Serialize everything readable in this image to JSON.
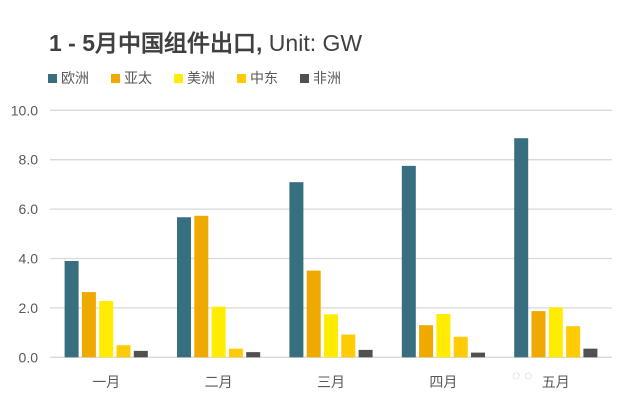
{
  "chart_data": {
    "type": "bar",
    "title_bold": "1 - 5月中国组件出口,",
    "title_rest": " Unit: GW",
    "categories": [
      "一月",
      "二月",
      "三月",
      "四月",
      "五月"
    ],
    "series": [
      {
        "name": "欧洲",
        "color": "#376f81",
        "values": [
          3.9,
          5.67,
          7.09,
          7.75,
          8.87
        ]
      },
      {
        "name": "亚太",
        "color": "#f0a900",
        "values": [
          2.64,
          5.73,
          3.51,
          1.3,
          1.87
        ]
      },
      {
        "name": "美洲",
        "color": "#ffec00",
        "values": [
          2.28,
          2.05,
          1.74,
          1.75,
          2.02
        ]
      },
      {
        "name": "中东",
        "color": "#ffcb05",
        "values": [
          0.49,
          0.35,
          0.92,
          0.83,
          1.26
        ]
      },
      {
        "name": "非洲",
        "color": "#505050",
        "values": [
          0.26,
          0.21,
          0.3,
          0.19,
          0.35
        ]
      }
    ],
    "ylim": [
      0,
      10
    ],
    "yticks": [
      "0.0",
      "2.0",
      "4.0",
      "6.0",
      "8.0",
      "10.0"
    ],
    "grid": true,
    "legend": "top-left"
  },
  "watermark": "PVInfoLink"
}
